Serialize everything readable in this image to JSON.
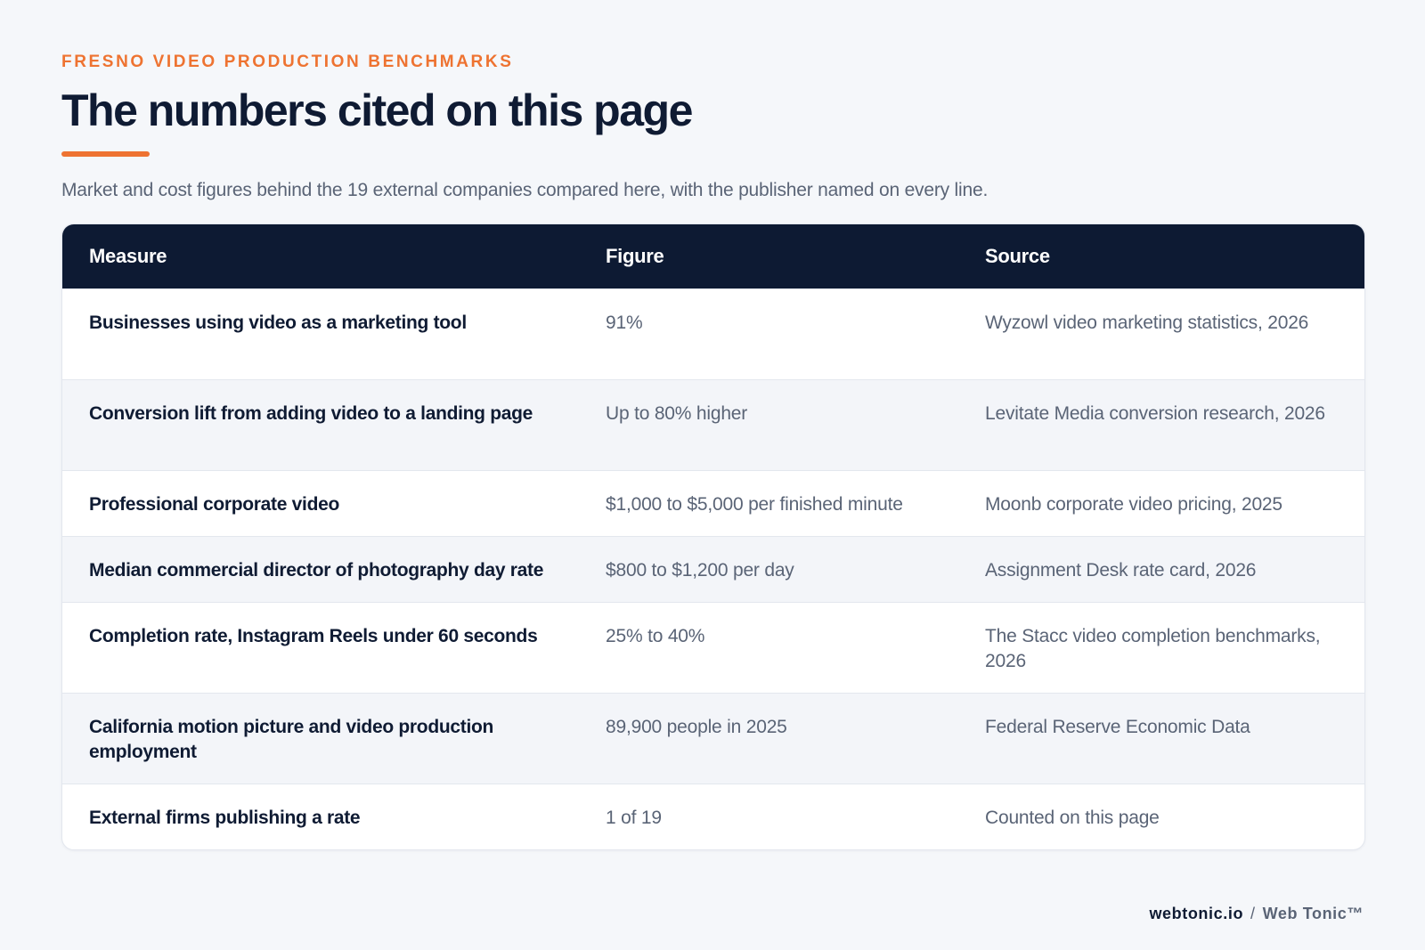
{
  "header": {
    "eyebrow": "FRESNO VIDEO PRODUCTION BENCHMARKS",
    "title": "The numbers cited on this page",
    "subtitle": "Market and cost figures behind the 19 external companies compared here, with the publisher named on every line."
  },
  "table": {
    "columns": [
      "Measure",
      "Figure",
      "Source"
    ],
    "rows": [
      {
        "measure": "Businesses using video as a marketing tool",
        "figure": "91%",
        "source": "Wyzowl video marketing statistics, 2026"
      },
      {
        "measure": "Conversion lift from adding video to a landing page",
        "figure": "Up to 80% higher",
        "source": "Levitate Media conversion research, 2026"
      },
      {
        "measure": "Professional corporate video",
        "figure": "$1,000 to $5,000 per finished minute",
        "source": "Moonb corporate video pricing, 2025"
      },
      {
        "measure": "Median commercial director of photography day rate",
        "figure": "$800 to $1,200 per day",
        "source": "Assignment Desk rate card, 2026"
      },
      {
        "measure": "Completion rate, Instagram Reels under 60 seconds",
        "figure": "25% to 40%",
        "source": "The Stacc video completion benchmarks, 2026"
      },
      {
        "measure": "California motion picture and video production employment",
        "figure": "89,900 people in 2025",
        "source": "Federal Reserve Economic Data"
      },
      {
        "measure": "External firms publishing a rate",
        "figure": "1 of 19",
        "source": "Counted on this page"
      }
    ]
  },
  "footer": {
    "domain": "webtonic.io",
    "separator": "/",
    "brand": "Web Tonic™"
  },
  "colors": {
    "accent": "#ee7331",
    "header_bg": "#0d1a33",
    "page_bg": "#f5f7fa"
  }
}
